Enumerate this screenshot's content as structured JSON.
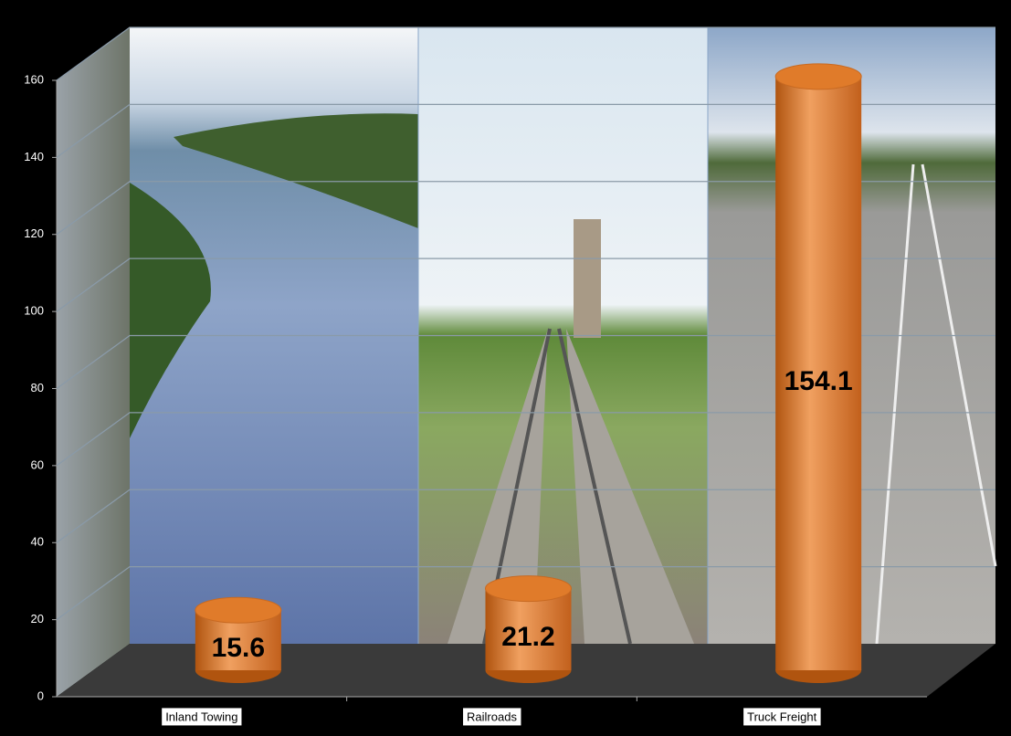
{
  "chart_data": {
    "type": "bar",
    "categories": [
      "Inland Towing",
      "Railroads",
      "Truck Freight"
    ],
    "values": [
      15.6,
      21.2,
      154.1
    ],
    "color": "#e07b2a",
    "ylim": [
      0,
      160
    ],
    "yticks": [
      0,
      20,
      40,
      60,
      80,
      100,
      120,
      140,
      160
    ],
    "grid": true
  }
}
